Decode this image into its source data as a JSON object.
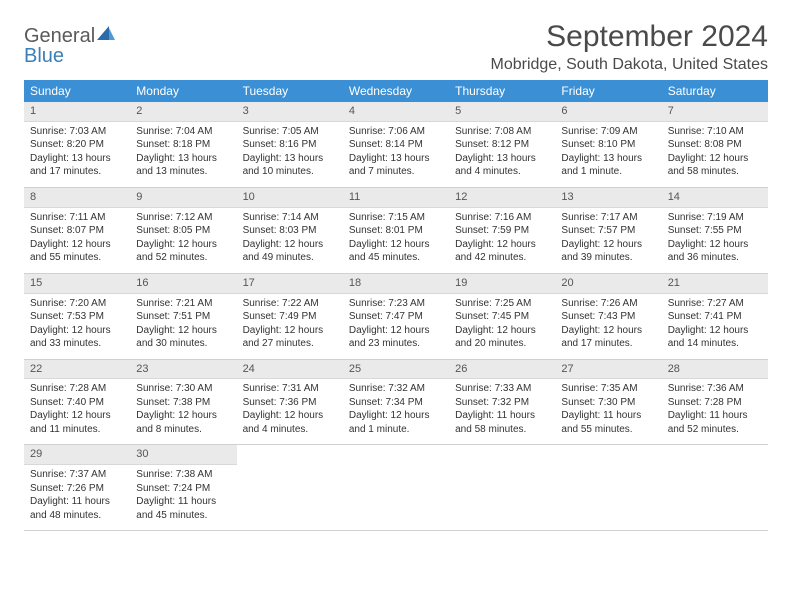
{
  "logo": {
    "text1": "General",
    "text2": "Blue"
  },
  "title": "September 2024",
  "location": "Mobridge, South Dakota, United States",
  "colors": {
    "header_bg": "#3b8fd4",
    "header_fg": "#ffffff",
    "daynum_bg": "#eaeaea",
    "daynum_fg": "#555555",
    "body_text": "#333333",
    "logo_gray": "#5a5a5a",
    "logo_blue": "#3b7fb8"
  },
  "day_labels": [
    "Sunday",
    "Monday",
    "Tuesday",
    "Wednesday",
    "Thursday",
    "Friday",
    "Saturday"
  ],
  "weeks": [
    [
      {
        "n": "1",
        "sr": "Sunrise: 7:03 AM",
        "ss": "Sunset: 8:20 PM",
        "d1": "Daylight: 13 hours",
        "d2": "and 17 minutes."
      },
      {
        "n": "2",
        "sr": "Sunrise: 7:04 AM",
        "ss": "Sunset: 8:18 PM",
        "d1": "Daylight: 13 hours",
        "d2": "and 13 minutes."
      },
      {
        "n": "3",
        "sr": "Sunrise: 7:05 AM",
        "ss": "Sunset: 8:16 PM",
        "d1": "Daylight: 13 hours",
        "d2": "and 10 minutes."
      },
      {
        "n": "4",
        "sr": "Sunrise: 7:06 AM",
        "ss": "Sunset: 8:14 PM",
        "d1": "Daylight: 13 hours",
        "d2": "and 7 minutes."
      },
      {
        "n": "5",
        "sr": "Sunrise: 7:08 AM",
        "ss": "Sunset: 8:12 PM",
        "d1": "Daylight: 13 hours",
        "d2": "and 4 minutes."
      },
      {
        "n": "6",
        "sr": "Sunrise: 7:09 AM",
        "ss": "Sunset: 8:10 PM",
        "d1": "Daylight: 13 hours",
        "d2": "and 1 minute."
      },
      {
        "n": "7",
        "sr": "Sunrise: 7:10 AM",
        "ss": "Sunset: 8:08 PM",
        "d1": "Daylight: 12 hours",
        "d2": "and 58 minutes."
      }
    ],
    [
      {
        "n": "8",
        "sr": "Sunrise: 7:11 AM",
        "ss": "Sunset: 8:07 PM",
        "d1": "Daylight: 12 hours",
        "d2": "and 55 minutes."
      },
      {
        "n": "9",
        "sr": "Sunrise: 7:12 AM",
        "ss": "Sunset: 8:05 PM",
        "d1": "Daylight: 12 hours",
        "d2": "and 52 minutes."
      },
      {
        "n": "10",
        "sr": "Sunrise: 7:14 AM",
        "ss": "Sunset: 8:03 PM",
        "d1": "Daylight: 12 hours",
        "d2": "and 49 minutes."
      },
      {
        "n": "11",
        "sr": "Sunrise: 7:15 AM",
        "ss": "Sunset: 8:01 PM",
        "d1": "Daylight: 12 hours",
        "d2": "and 45 minutes."
      },
      {
        "n": "12",
        "sr": "Sunrise: 7:16 AM",
        "ss": "Sunset: 7:59 PM",
        "d1": "Daylight: 12 hours",
        "d2": "and 42 minutes."
      },
      {
        "n": "13",
        "sr": "Sunrise: 7:17 AM",
        "ss": "Sunset: 7:57 PM",
        "d1": "Daylight: 12 hours",
        "d2": "and 39 minutes."
      },
      {
        "n": "14",
        "sr": "Sunrise: 7:19 AM",
        "ss": "Sunset: 7:55 PM",
        "d1": "Daylight: 12 hours",
        "d2": "and 36 minutes."
      }
    ],
    [
      {
        "n": "15",
        "sr": "Sunrise: 7:20 AM",
        "ss": "Sunset: 7:53 PM",
        "d1": "Daylight: 12 hours",
        "d2": "and 33 minutes."
      },
      {
        "n": "16",
        "sr": "Sunrise: 7:21 AM",
        "ss": "Sunset: 7:51 PM",
        "d1": "Daylight: 12 hours",
        "d2": "and 30 minutes."
      },
      {
        "n": "17",
        "sr": "Sunrise: 7:22 AM",
        "ss": "Sunset: 7:49 PM",
        "d1": "Daylight: 12 hours",
        "d2": "and 27 minutes."
      },
      {
        "n": "18",
        "sr": "Sunrise: 7:23 AM",
        "ss": "Sunset: 7:47 PM",
        "d1": "Daylight: 12 hours",
        "d2": "and 23 minutes."
      },
      {
        "n": "19",
        "sr": "Sunrise: 7:25 AM",
        "ss": "Sunset: 7:45 PM",
        "d1": "Daylight: 12 hours",
        "d2": "and 20 minutes."
      },
      {
        "n": "20",
        "sr": "Sunrise: 7:26 AM",
        "ss": "Sunset: 7:43 PM",
        "d1": "Daylight: 12 hours",
        "d2": "and 17 minutes."
      },
      {
        "n": "21",
        "sr": "Sunrise: 7:27 AM",
        "ss": "Sunset: 7:41 PM",
        "d1": "Daylight: 12 hours",
        "d2": "and 14 minutes."
      }
    ],
    [
      {
        "n": "22",
        "sr": "Sunrise: 7:28 AM",
        "ss": "Sunset: 7:40 PM",
        "d1": "Daylight: 12 hours",
        "d2": "and 11 minutes."
      },
      {
        "n": "23",
        "sr": "Sunrise: 7:30 AM",
        "ss": "Sunset: 7:38 PM",
        "d1": "Daylight: 12 hours",
        "d2": "and 8 minutes."
      },
      {
        "n": "24",
        "sr": "Sunrise: 7:31 AM",
        "ss": "Sunset: 7:36 PM",
        "d1": "Daylight: 12 hours",
        "d2": "and 4 minutes."
      },
      {
        "n": "25",
        "sr": "Sunrise: 7:32 AM",
        "ss": "Sunset: 7:34 PM",
        "d1": "Daylight: 12 hours",
        "d2": "and 1 minute."
      },
      {
        "n": "26",
        "sr": "Sunrise: 7:33 AM",
        "ss": "Sunset: 7:32 PM",
        "d1": "Daylight: 11 hours",
        "d2": "and 58 minutes."
      },
      {
        "n": "27",
        "sr": "Sunrise: 7:35 AM",
        "ss": "Sunset: 7:30 PM",
        "d1": "Daylight: 11 hours",
        "d2": "and 55 minutes."
      },
      {
        "n": "28",
        "sr": "Sunrise: 7:36 AM",
        "ss": "Sunset: 7:28 PM",
        "d1": "Daylight: 11 hours",
        "d2": "and 52 minutes."
      }
    ],
    [
      {
        "n": "29",
        "sr": "Sunrise: 7:37 AM",
        "ss": "Sunset: 7:26 PM",
        "d1": "Daylight: 11 hours",
        "d2": "and 48 minutes."
      },
      {
        "n": "30",
        "sr": "Sunrise: 7:38 AM",
        "ss": "Sunset: 7:24 PM",
        "d1": "Daylight: 11 hours",
        "d2": "and 45 minutes."
      },
      null,
      null,
      null,
      null,
      null
    ]
  ]
}
